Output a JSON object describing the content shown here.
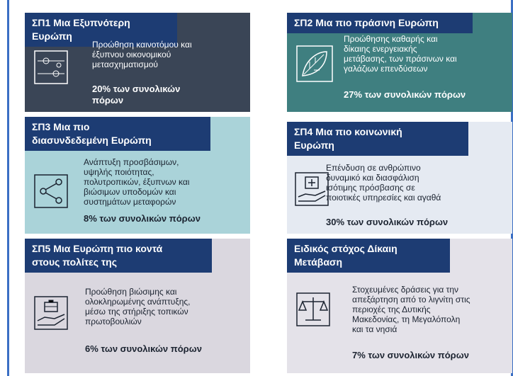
{
  "cards": [
    {
      "title_lines": [
        "ΣΠ1 Μια Εξυπνότερη Ευρώπη"
      ],
      "description_lines": [
        "Προώθηση καινοτόμου και",
        "έξυπνου οικονομικού",
        "μετασχηματισμού"
      ],
      "share_lines": [
        "20% των συνολικών",
        "πόρων"
      ]
    },
    {
      "title_lines": [
        "ΣΠ2 Μια πιο πράσινη Ευρώπη"
      ],
      "description_lines": [
        "Προώθησης καθαρής και",
        "δίκαιης ενεργειακής",
        "μετάβασης, των πράσινων και",
        "γαλάζιων επενδύσεων"
      ],
      "share_lines": [
        "27% των συνολικών πόρων"
      ]
    },
    {
      "title_lines": [
        "ΣΠ3 Μια πιο",
        "διασυνδεδεμένη Ευρώπη"
      ],
      "description_lines": [
        "Ανάπτυξη προσβάσιμων,",
        "υψηλής ποιότητας,",
        "πολυτροπικών, έξυπνων και",
        "βιώσιμων υποδομών και",
        "συστημάτων μεταφορών"
      ],
      "share_lines": [
        "8% των συνολικών πόρων"
      ]
    },
    {
      "title_lines": [
        "ΣΠ4 Μια πιο κοινωνική",
        "Ευρώπη"
      ],
      "description_lines": [
        "Επένδυση σε ανθρώπινο",
        "δυναμικό και διασφάλιση",
        "ισότιμης πρόσβασης σε",
        "ποιοτικές υπηρεσίες και αγαθά"
      ],
      "share_lines": [
        "30% των συνολικών πόρων"
      ]
    },
    {
      "title_lines": [
        "ΣΠ5 Μια Ευρώπη πιο κοντά",
        "στους πολίτες της"
      ],
      "description_lines": [
        "Προώθηση βιώσιμης και",
        "ολοκληρωμένης ανάπτυξης,",
        "μέσω της στήριξης τοπικών",
        "πρωτοβουλιών"
      ],
      "share_lines": [
        "6% των συνολικών πόρων"
      ]
    },
    {
      "title_lines": [
        "Ειδικός στόχος Δίκαιη",
        "Μετάβαση"
      ],
      "description_lines": [
        "Στοχευμένες δράσεις για την",
        "απεξάρτηση από το λιγνίτη στις",
        "περιοχές της Δυτικής",
        "Μακεδονίας, τη Μεγαλόπολη",
        "και τα νησιά"
      ],
      "share_lines": [
        "7% των συνολικών πόρων"
      ]
    }
  ]
}
